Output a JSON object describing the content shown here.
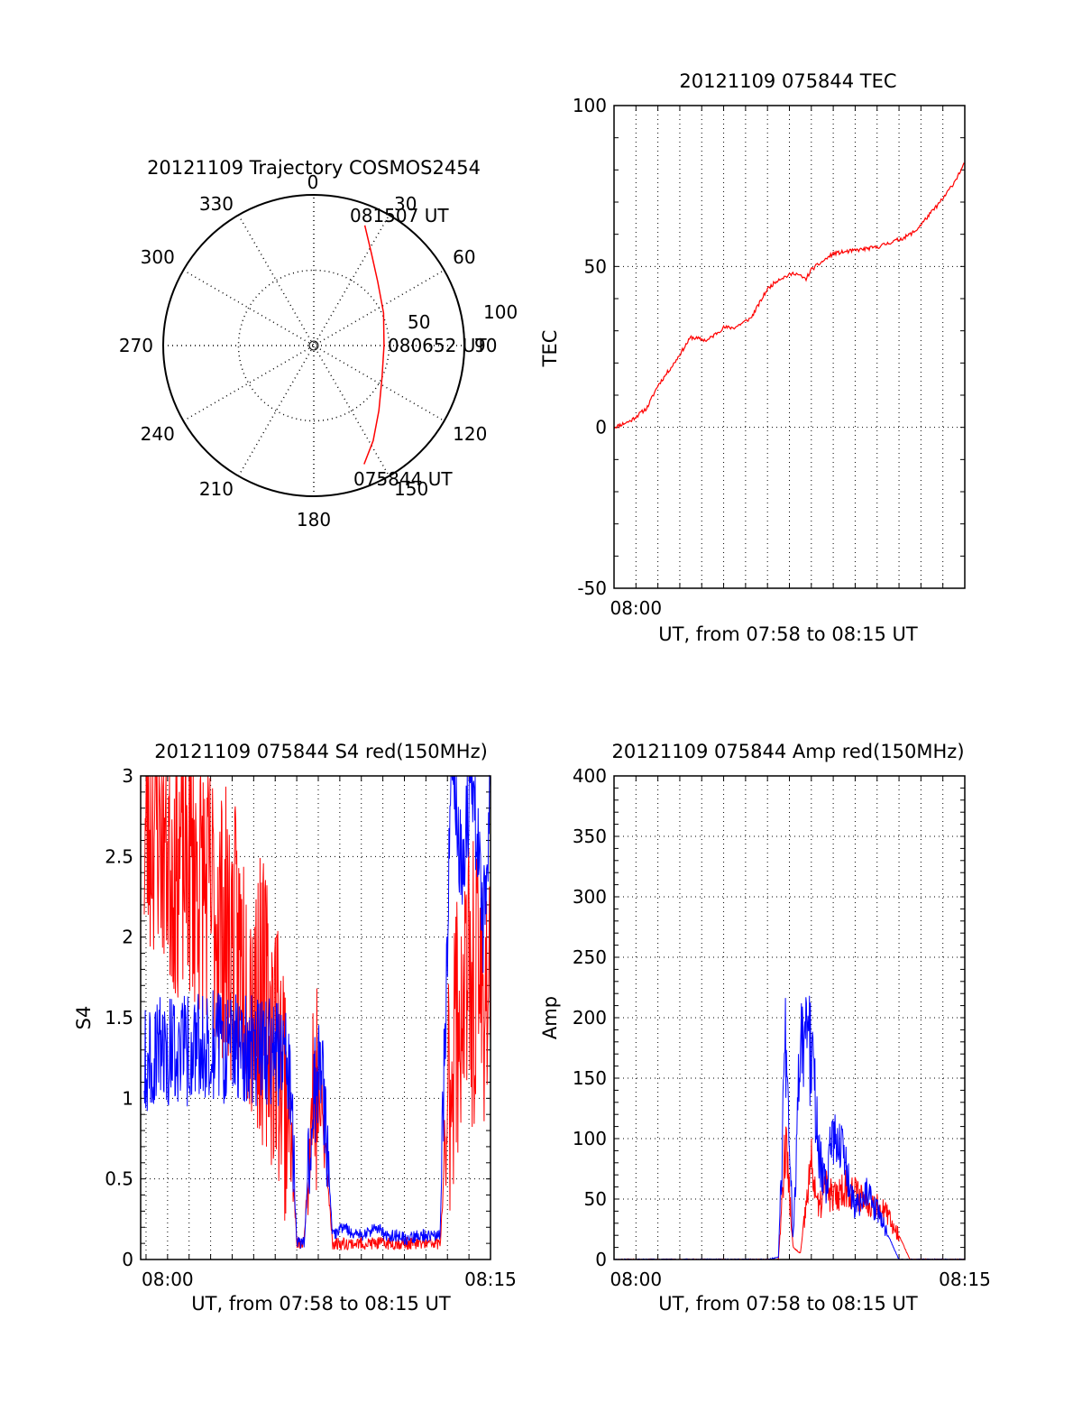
{
  "figure": {
    "colors": {
      "red": "#ff0000",
      "blue": "#0000ff",
      "axis": "#000000",
      "grid": "#000000"
    }
  },
  "chart_data": [
    {
      "id": "trajectory",
      "type": "polar",
      "title": "20121109 Trajectory COSMOS2454",
      "azimuth_labels": [
        "0",
        "30",
        "60",
        "90",
        "120",
        "150",
        "180",
        "210",
        "240",
        "270",
        "300",
        "330"
      ],
      "radial_labels": [
        "50",
        "100"
      ],
      "time_labels": {
        "start": "075844 UT",
        "middle": "080652 UT",
        "end": "081507 UT"
      },
      "series": [
        {
          "color": "red",
          "points": [
            {
              "az": 157,
              "el": 13
            },
            {
              "az": 148,
              "el": 23
            },
            {
              "az": 135,
              "el": 35
            },
            {
              "az": 115,
              "el": 45
            },
            {
              "az": 90,
              "el": 48
            },
            {
              "az": 65,
              "el": 44
            },
            {
              "az": 45,
              "el": 36
            },
            {
              "az": 32,
              "el": 25
            },
            {
              "az": 23,
              "el": 12
            }
          ]
        }
      ]
    },
    {
      "id": "tec",
      "type": "line",
      "title": "20121109 075844 TEC",
      "xlabel": "UT, from 07:58 to 08:15 UT",
      "ylabel": "TEC",
      "xlim": [
        "07:59",
        "08:15"
      ],
      "ylim": [
        -50,
        100
      ],
      "x_ticks": [
        {
          "t": "08:00",
          "label": "08:00"
        }
      ],
      "y_ticks": [
        -50,
        0,
        50,
        100
      ],
      "series": [
        {
          "color": "red",
          "x": [
            "07:59:00",
            "07:59:45",
            "08:00:30",
            "08:01:00",
            "08:01:45",
            "08:02:30",
            "08:03:15",
            "08:04:00",
            "08:04:30",
            "08:05:15",
            "08:06:00",
            "08:06:30",
            "08:07:15",
            "08:07:45",
            "08:08:00",
            "08:09:00",
            "08:10:00",
            "08:11:00",
            "08:12:15",
            "08:12:45",
            "08:13:15",
            "08:14:00",
            "08:14:30",
            "08:15:00"
          ],
          "y": [
            0,
            2,
            6,
            13,
            20,
            28,
            27,
            31,
            31,
            34,
            43,
            46,
            48,
            46,
            49,
            54,
            55,
            56,
            59,
            61,
            65,
            71,
            76,
            82
          ]
        }
      ]
    },
    {
      "id": "s4",
      "type": "line",
      "title": "20121109 075844 S4 red(150MHz)",
      "xlabel": "UT, from 07:58 to 08:15 UT",
      "ylabel": "S4",
      "xlim": [
        "07:58:45",
        "08:15:00"
      ],
      "ylim": [
        0,
        3
      ],
      "x_ticks": [
        {
          "t": "08:00",
          "label": "08:00"
        },
        {
          "t": "08:15",
          "label": "08:15"
        }
      ],
      "y_ticks": [
        0,
        0.5,
        1,
        1.5,
        2,
        2.5,
        3
      ],
      "y_tick_labels": [
        "0",
        "0.5",
        "1",
        "1.5",
        "2",
        "2.5",
        "3"
      ],
      "series": [
        {
          "color": "red",
          "x": [
            "07:58:55",
            "07:59:30",
            "08:00:15",
            "08:01:00",
            "08:01:45",
            "08:02:30",
            "08:03:15",
            "08:04:00",
            "08:04:45",
            "08:05:15",
            "08:05:40",
            "08:06:00",
            "08:06:20",
            "08:06:45",
            "08:07:10",
            "08:07:40",
            "08:08:10",
            "08:08:40",
            "08:09:10",
            "08:09:40",
            "08:10:10",
            "08:10:40",
            "08:11:10",
            "08:11:40",
            "08:12:10",
            "08:12:40",
            "08:13:10",
            "08:13:40",
            "08:14:10",
            "08:14:40",
            "08:15:00"
          ],
          "y": [
            2.6,
            2.8,
            2.5,
            2.5,
            2.3,
            2.1,
            1.9,
            1.7,
            1.5,
            1.3,
            0.9,
            0.1,
            0.1,
            1.1,
            0.9,
            0.1,
            0.1,
            0.1,
            0.1,
            0.1,
            0.1,
            0.1,
            0.1,
            0.1,
            0.1,
            0.1,
            1.3,
            1.6,
            1.7,
            1.7,
            1.8
          ]
        },
        {
          "color": "blue",
          "x": [
            "07:58:55",
            "07:59:30",
            "08:00:15",
            "08:01:00",
            "08:01:45",
            "08:02:30",
            "08:03:15",
            "08:04:00",
            "08:04:45",
            "08:05:15",
            "08:05:40",
            "08:06:00",
            "08:06:20",
            "08:06:45",
            "08:07:10",
            "08:07:40",
            "08:08:10",
            "08:08:40",
            "08:09:10",
            "08:09:40",
            "08:10:10",
            "08:10:40",
            "08:11:10",
            "08:11:40",
            "08:12:10",
            "08:12:40",
            "08:13:10",
            "08:13:40",
            "08:14:10",
            "08:14:40",
            "08:15:00"
          ],
          "y": [
            1.2,
            1.3,
            1.3,
            1.3,
            1.35,
            1.3,
            1.3,
            1.3,
            1.3,
            1.25,
            1.2,
            0.1,
            0.1,
            1.0,
            1.2,
            0.15,
            0.2,
            0.15,
            0.15,
            0.2,
            0.15,
            0.15,
            0.12,
            0.15,
            0.15,
            0.15,
            3.0,
            2.5,
            3.0,
            2.0,
            3.0
          ]
        }
      ]
    },
    {
      "id": "amp",
      "type": "line",
      "title": "20121109 075844 Amp red(150MHz)",
      "xlabel": "UT, from 07:58 to 08:15 UT",
      "ylabel": "Amp",
      "xlim": [
        "07:59",
        "08:15"
      ],
      "ylim": [
        0,
        400
      ],
      "x_ticks": [
        {
          "t": "08:00",
          "label": "08:00"
        },
        {
          "t": "08:15",
          "label": "08:15"
        }
      ],
      "y_ticks": [
        0,
        50,
        100,
        150,
        200,
        250,
        300,
        350,
        400
      ],
      "series": [
        {
          "color": "red",
          "x": [
            "07:59:00",
            "08:06:00",
            "08:06:30",
            "08:06:50",
            "08:07:10",
            "08:07:30",
            "08:08:00",
            "08:08:20",
            "08:08:40",
            "08:09:00",
            "08:09:30",
            "08:10:00",
            "08:10:30",
            "08:11:00",
            "08:11:30",
            "08:12:00",
            "08:12:30",
            "08:13:00",
            "08:13:30",
            "08:14:00",
            "08:15:00"
          ],
          "y": [
            0,
            0,
            0,
            100,
            10,
            5,
            80,
            40,
            60,
            50,
            60,
            55,
            50,
            45,
            35,
            20,
            0,
            0,
            0,
            0,
            0
          ]
        },
        {
          "color": "blue",
          "x": [
            "07:59:00",
            "08:06:00",
            "08:06:30",
            "08:06:50",
            "08:07:10",
            "08:07:30",
            "08:08:00",
            "08:08:20",
            "08:08:40",
            "08:09:00",
            "08:09:30",
            "08:10:00",
            "08:10:30",
            "08:11:00",
            "08:11:30",
            "08:12:00",
            "08:12:30",
            "08:13:00",
            "08:13:30",
            "08:14:00",
            "08:15:00"
          ],
          "y": [
            0,
            0,
            2,
            180,
            15,
            180,
            170,
            90,
            60,
            110,
            80,
            40,
            55,
            40,
            20,
            0,
            0,
            0,
            0,
            0,
            0
          ]
        }
      ]
    }
  ]
}
